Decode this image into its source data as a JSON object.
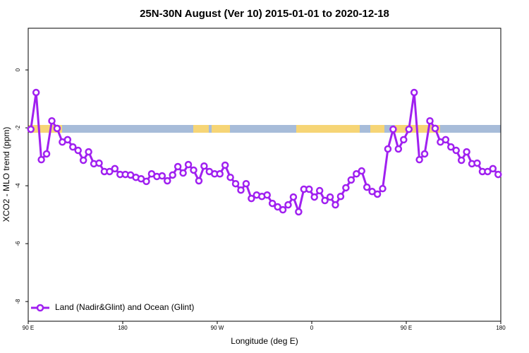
{
  "chart_data": {
    "type": "line",
    "title": "25N-30N August (Ver 10)   2015-01-01 to 2020-12-18",
    "x_label": "Longitude (deg E)",
    "y_label": "XCO2 - MLO trend (ppm)",
    "xlim": [
      90,
      540
    ],
    "ylim": [
      -8.68,
      1.44
    ],
    "xticks": [
      {
        "value": 90,
        "label": "90 E"
      },
      180,
      {
        "value": 270,
        "label": "90 W"
      },
      {
        "value": 360,
        "label": "0"
      },
      {
        "value": 450,
        "label": "90 E"
      },
      {
        "value": 540,
        "label": "180"
      }
    ],
    "yticks": [
      0,
      -2,
      -4,
      -6,
      -8
    ],
    "legend": "bottomleft",
    "x": [
      92.5,
      97.5,
      102.5,
      107.5,
      112.5,
      117.5,
      122.5,
      127.5,
      132.5,
      137.5,
      142.5,
      147.5,
      152.5,
      157.5,
      162.5,
      167.5,
      172.5,
      177.5,
      182.5,
      187.5,
      192.5,
      197.5,
      202.5,
      207.5,
      212.5,
      217.5,
      222.5,
      227.5,
      232.5,
      237.5,
      242.5,
      247.5,
      252.5,
      257.5,
      262.5,
      267.5,
      272.5,
      277.5,
      282.5,
      287.5,
      292.5,
      297.5,
      302.5,
      307.5,
      312.5,
      317.5,
      322.5,
      327.5,
      332.5,
      337.5,
      342.5,
      347.5,
      352.5,
      357.5,
      362.5,
      367.5,
      372.5,
      377.5,
      382.5,
      387.5,
      392.5,
      397.5,
      402.5,
      407.5,
      412.5,
      417.5,
      422.5,
      427.5,
      432.5,
      437.5,
      442.5,
      447.5,
      452.5,
      457.5,
      462.5,
      467.5,
      472.5,
      477.5,
      482.5,
      487.5,
      492.5,
      497.5,
      502.5,
      507.5,
      512.5,
      517.5,
      522.5,
      527.5,
      532.5,
      537.5
    ],
    "series": [
      {
        "name": "Land (Nadir&Glint) and Ocean (Glint)",
        "color": "#a020f0",
        "values": [
          -2.05,
          -0.78,
          -3.1,
          -2.9,
          -1.76,
          -2.02,
          -2.49,
          -2.41,
          -2.66,
          -2.78,
          -3.12,
          -2.83,
          -3.24,
          -3.22,
          -3.51,
          -3.51,
          -3.41,
          -3.61,
          -3.61,
          -3.63,
          -3.71,
          -3.76,
          -3.85,
          -3.59,
          -3.68,
          -3.66,
          -3.83,
          -3.63,
          -3.34,
          -3.56,
          -3.27,
          -3.46,
          -3.83,
          -3.32,
          -3.51,
          -3.59,
          -3.59,
          -3.29,
          -3.71,
          -3.93,
          -4.15,
          -3.93,
          -4.44,
          -4.32,
          -4.37,
          -4.32,
          -4.61,
          -4.73,
          -4.83,
          -4.66,
          -4.39,
          -4.9,
          -4.12,
          -4.12,
          -4.39,
          -4.17,
          -4.51,
          -4.39,
          -4.66,
          -4.37,
          -4.07,
          -3.8,
          -3.59,
          -3.49,
          -4.05,
          -4.2,
          -4.29,
          -4.1,
          -2.73,
          -2.05,
          -2.73,
          -2.41,
          -2.05,
          -0.78,
          -3.1,
          -2.9,
          -1.76,
          -2.02,
          -2.49,
          -2.41,
          -2.66,
          -2.78,
          -3.12,
          -2.83,
          -3.24,
          -3.22,
          -3.51,
          -3.51,
          -3.41,
          -3.61
        ]
      }
    ]
  }
}
